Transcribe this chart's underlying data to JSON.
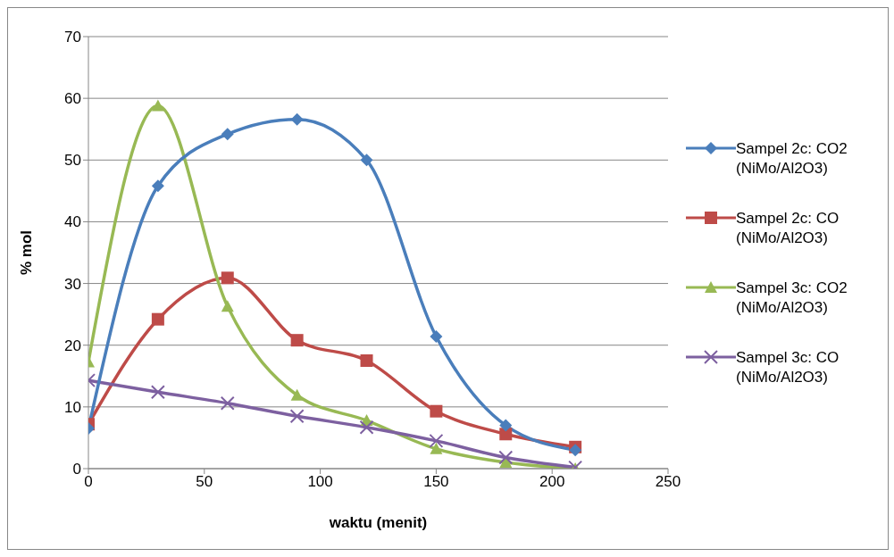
{
  "chart_data": {
    "type": "line",
    "xlabel": "waktu (menit)",
    "ylabel": "% mol",
    "x": [
      0,
      30,
      60,
      90,
      120,
      150,
      180,
      210
    ],
    "xlim": [
      0,
      250
    ],
    "xticks": [
      0,
      50,
      100,
      150,
      200,
      250
    ],
    "ylim": [
      0,
      70
    ],
    "yticks": [
      0,
      10,
      20,
      30,
      40,
      50,
      60,
      70
    ],
    "grid": "y",
    "legend": "right",
    "series": [
      {
        "name": "Sampel 2c: CO2 (NiMo/Al2O3)",
        "color": "#4a7ebb",
        "marker": "diamond",
        "values": [
          6.5,
          45.8,
          54.2,
          56.6,
          50,
          21.4,
          7,
          3
        ]
      },
      {
        "name": "Sampel 2c: CO (NiMo/Al2O3)",
        "color": "#be4b48",
        "marker": "square",
        "values": [
          7.2,
          24.2,
          30.9,
          20.8,
          17.5,
          9.3,
          5.6,
          3.5
        ]
      },
      {
        "name": "Sampel 3c: CO2 (NiMo/Al2O3)",
        "color": "#98b954",
        "marker": "triangle",
        "values": [
          17.3,
          58.8,
          26.3,
          11.9,
          7.8,
          3.2,
          1,
          0
        ]
      },
      {
        "name": "Sampel 3c: CO (NiMo/Al2O3)",
        "color": "#7d60a0",
        "marker": "cross",
        "values": [
          14.3,
          12.4,
          10.6,
          8.5,
          6.7,
          4.5,
          1.8,
          0.2
        ]
      }
    ]
  }
}
